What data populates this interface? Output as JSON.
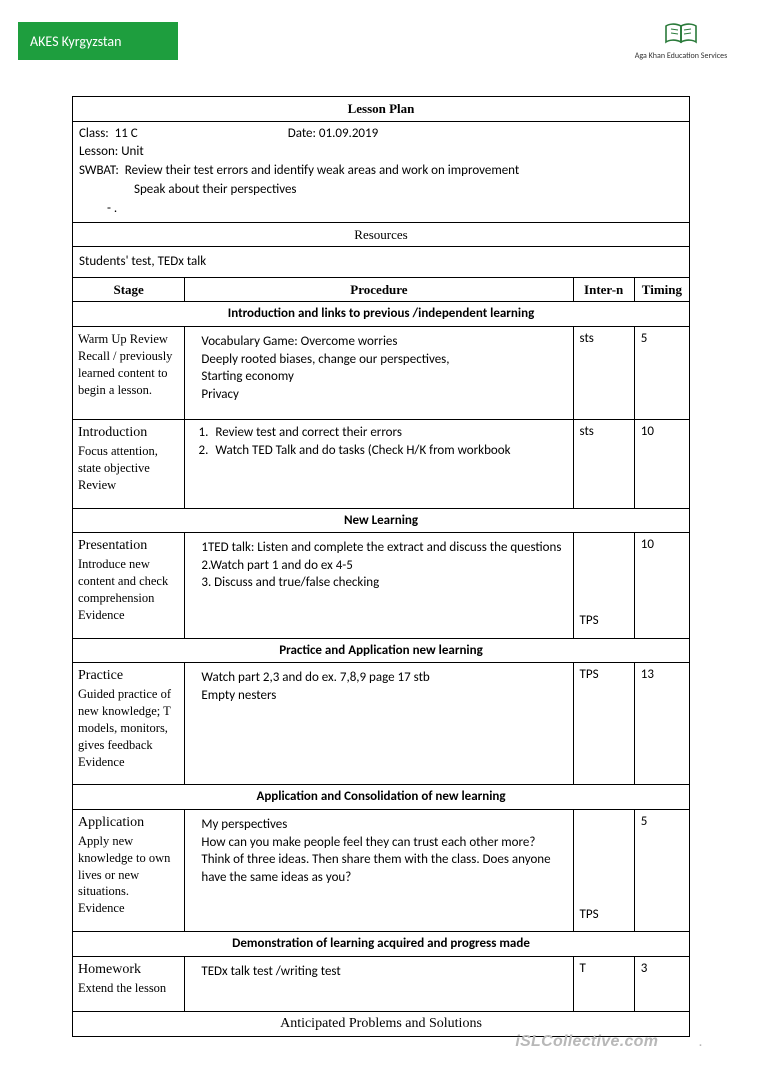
{
  "badge": {
    "text": "AKES Kyrgyzstan",
    "bg": "#1e9e3e",
    "fg": "#ffffff"
  },
  "logo": {
    "caption": "Aga Khan Education Services",
    "stroke": "#2a7a3a"
  },
  "doc": {
    "title": "Lesson Plan",
    "class_label": "Class:",
    "class_value": "11 C",
    "date_label": "Date:",
    "date_value": "01.09.2019",
    "lesson_label": "Lesson:",
    "lesson_value": "Unit",
    "swbat_label": "SWBAT:",
    "swbat_line1": "Review their test errors and identify weak areas and work  on improvement",
    "swbat_line2": "Speak about their perspectives",
    "dash": "-   .",
    "resources_title": "Resources",
    "resources_text": "Students' test, TEDx talk",
    "columns": {
      "stage": "Stage",
      "procedure": "Procedure",
      "intern": "Inter-n",
      "timing": "Timing"
    },
    "footer_note": "Anticipated Problems and  Solutions"
  },
  "sections": [
    {
      "header": "Introduction and links to previous /independent learning",
      "rows": [
        {
          "stage_title": "",
          "stage_body": "Warm Up Review Recall / previously learned content to begin a lesson.",
          "procedure": "Vocabulary Game:  Overcome worries\nDeeply rooted biases, change our perspectives,\nStarting economy\nPrivacy",
          "intern": "sts",
          "timing": "5"
        },
        {
          "stage_title": "Introduction",
          "stage_body": "Focus attention, state objective Review",
          "procedure_list": [
            "Review test and correct their errors",
            "Watch TED Talk and do tasks (Check H/K from workbook"
          ],
          "intern": "sts",
          "timing": "10"
        }
      ]
    },
    {
      "header": "New Learning",
      "rows": [
        {
          "stage_title": "Presentation",
          "stage_body": "Introduce new content and check comprehension Evidence",
          "procedure": "1TED talk: Listen and complete the extract and discuss the questions\n2.Watch  part 1  and do ex 4-5\n3. Discuss  and true/false checking",
          "intern": "TPS",
          "timing": "10",
          "intern_bottom": true
        }
      ]
    },
    {
      "header": "Practice and Application  new learning",
      "rows": [
        {
          "stage_title": "Practice",
          "stage_body": "Guided practice of new knowledge; T models, monitors, gives feedback Evidence",
          "procedure": "Watch part 2,3 and do ex. 7,8,9 page 17 stb\nEmpty nesters",
          "intern": "TPS",
          "timing": "13"
        }
      ]
    },
    {
      "header": "Application and Consolidation  of new learning",
      "rows": [
        {
          "stage_title": "Application",
          "stage_body": "Apply new knowledge to own lives or new situations.\nEvidence",
          "procedure": "My perspectives\nHow can you make people feel they can trust each other more?\nThink of three ideas. Then share them with the class. Does anyone have the same ideas as you?",
          "intern": "TPS",
          "timing": "5",
          "intern_bottom": true
        }
      ]
    },
    {
      "header": "Demonstration of learning acquired and progress made",
      "rows": [
        {
          "stage_title": "Homework",
          "stage_body": "Extend the lesson",
          "procedure": "TEDx talk test /writing test",
          "intern": "T",
          "timing": "3"
        }
      ]
    }
  ],
  "watermark": "iSLCollective.com",
  "colwidths": {
    "stage": 110,
    "procedure": 380,
    "intern": 60,
    "timing": 54
  }
}
